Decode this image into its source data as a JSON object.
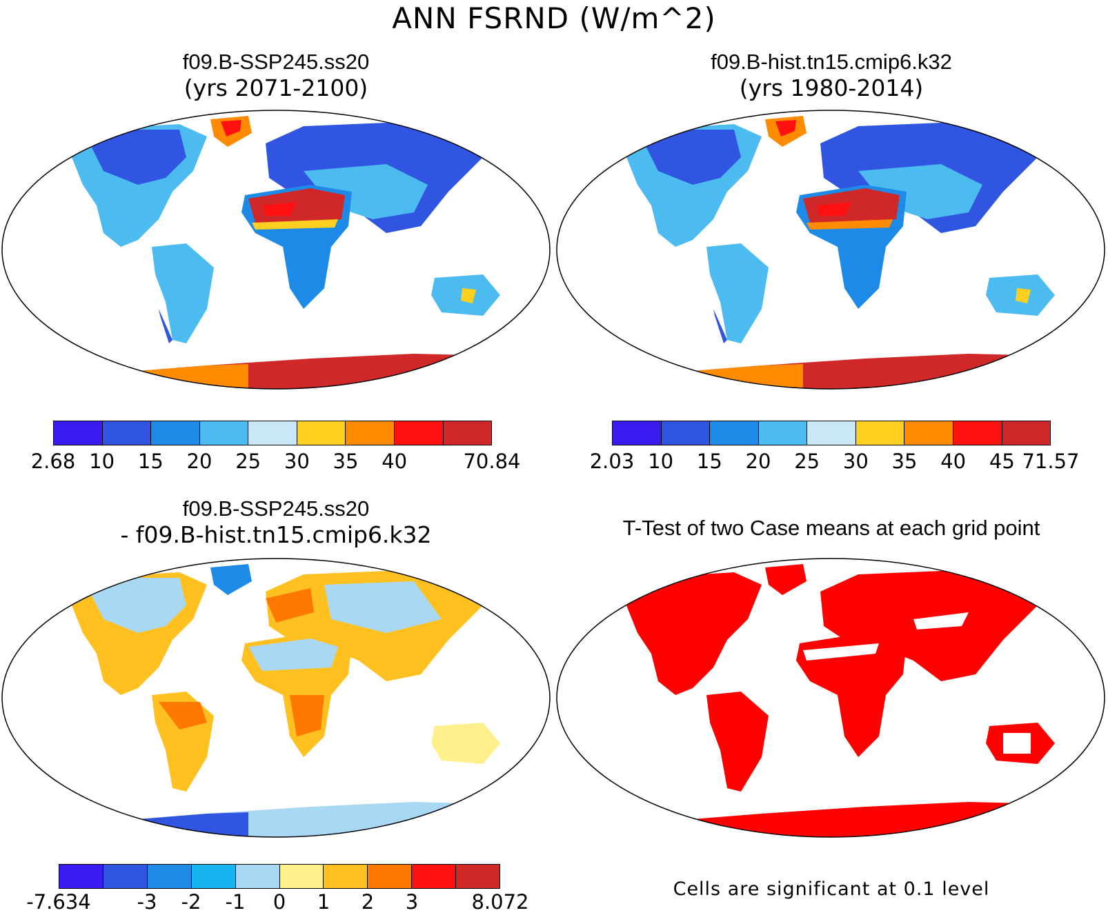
{
  "main_title": "ANN FSRND (W/m^2)",
  "panels": [
    {
      "id": "case",
      "title_line1": "f09.B-SSP245.ss20",
      "title_line2": "(yrs 2071-2100)",
      "colorbar": {
        "colors": [
          "#3a1bf0",
          "#3055e0",
          "#1e8ae8",
          "#4cbcf0",
          "#c8e8f8",
          "#ffd020",
          "#ff8c00",
          "#ff1010",
          "#d02828"
        ],
        "labels": [
          "2.68",
          "10",
          "15",
          "20",
          "25",
          "30",
          "35",
          "40",
          "70.84"
        ],
        "label_slots": [
          0,
          1,
          2,
          3,
          4,
          5,
          6,
          7,
          9
        ]
      }
    },
    {
      "id": "control",
      "title_line1": "f09.B-hist.tn15.cmip6.k32",
      "title_line2": "(yrs 1980-2014)",
      "colorbar": {
        "colors": [
          "#3a1bf0",
          "#3055e0",
          "#1e8ae8",
          "#4cbcf0",
          "#c8e8f8",
          "#ffd020",
          "#ff8c00",
          "#ff1010",
          "#d02828"
        ],
        "labels": [
          "2.03",
          "10",
          "15",
          "20",
          "25",
          "30",
          "35",
          "40",
          "45",
          "71.57"
        ],
        "label_slots": [
          0,
          1,
          2,
          3,
          4,
          5,
          6,
          7,
          8,
          9
        ]
      }
    },
    {
      "id": "difference",
      "title_line1": "f09.B-SSP245.ss20",
      "title_line2": "- f09.B-hist.tn15.cmip6.k32",
      "colorbar": {
        "colors": [
          "#3a1bf0",
          "#3055e0",
          "#1e8ae8",
          "#18b4f0",
          "#a8d8f4",
          "#fff08c",
          "#ffc020",
          "#ff7800",
          "#ff1010",
          "#d02828"
        ],
        "labels": [
          "-7.634",
          "-3",
          "-2",
          "-1",
          "0",
          "1",
          "2",
          "3",
          "8.072"
        ],
        "label_slots": [
          0,
          2,
          3,
          4,
          5,
          6,
          7,
          8,
          10
        ]
      }
    },
    {
      "id": "ttest",
      "title": "T-Test of two Case means at each grid point",
      "note": "Cells are significant at 0.1 level",
      "sig_color": "#ff0000"
    }
  ]
}
